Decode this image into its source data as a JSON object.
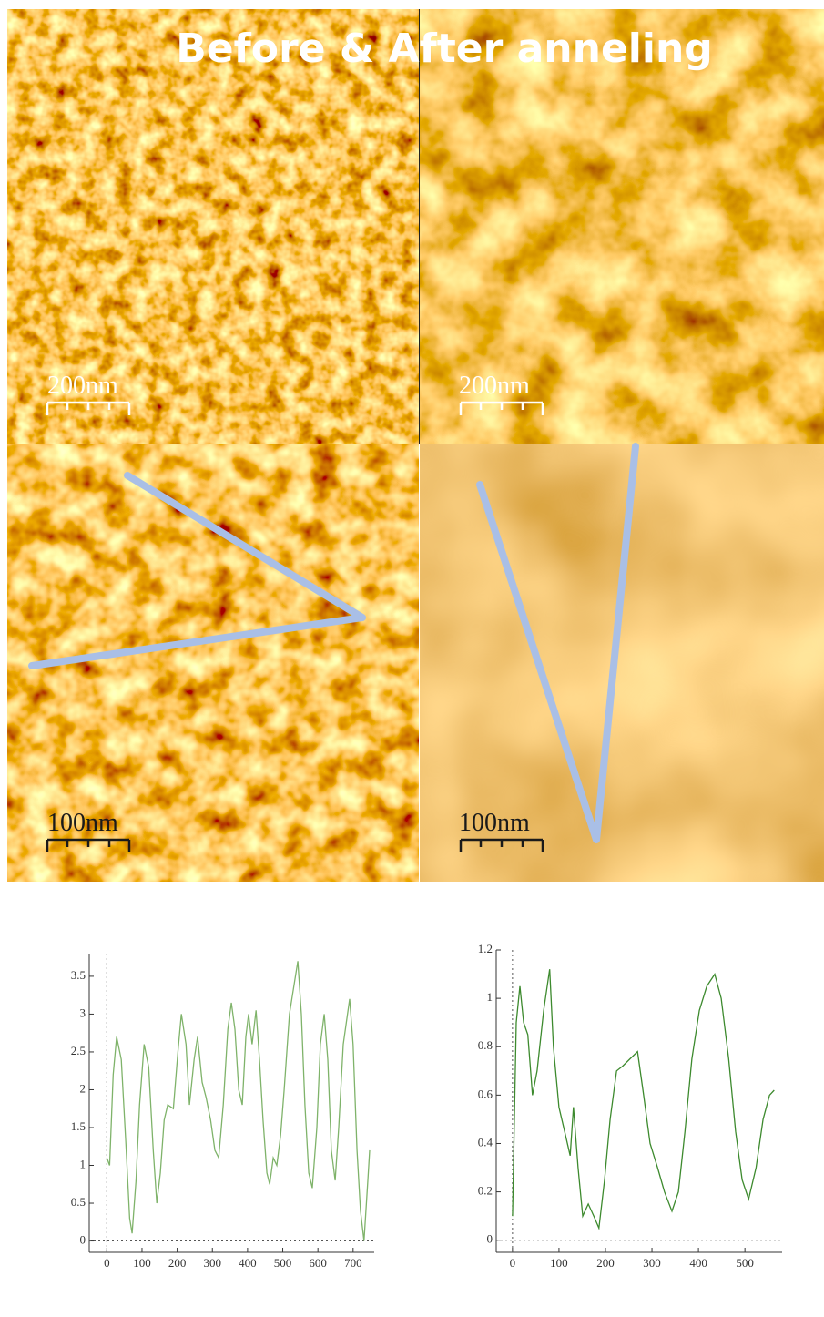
{
  "title": "Before & After anneling",
  "images": [
    {
      "scale": "200nm"
    },
    {
      "scale": "200nm"
    },
    {
      "scale": "100nm"
    },
    {
      "scale": "100nm"
    }
  ],
  "chart_data": [
    {
      "type": "line",
      "x": [
        0,
        8,
        18,
        28,
        41,
        54,
        65,
        72,
        83,
        93,
        106,
        119,
        132,
        142,
        152,
        163,
        173,
        189,
        202,
        212,
        225,
        235,
        248,
        258,
        271,
        282,
        295,
        307,
        318,
        331,
        344,
        354,
        364,
        375,
        385,
        395,
        403,
        413,
        424,
        434,
        444,
        455,
        463,
        473,
        483,
        494,
        504,
        519,
        543,
        553,
        563,
        574,
        584,
        597,
        607,
        618,
        628,
        638,
        649,
        659,
        672,
        690,
        700,
        711,
        721,
        731,
        742,
        747
      ],
      "series": [
        {
          "color": "#7fb36a",
          "values": [
            1.1,
            1.0,
            2.2,
            2.7,
            2.4,
            1.3,
            0.3,
            0.1,
            0.8,
            1.8,
            2.6,
            2.3,
            1.2,
            0.5,
            0.9,
            1.6,
            1.8,
            1.75,
            2.5,
            3.0,
            2.6,
            1.8,
            2.4,
            2.7,
            2.1,
            1.9,
            1.6,
            1.2,
            1.1,
            1.8,
            2.8,
            3.15,
            2.8,
            2.0,
            1.8,
            2.7,
            3.0,
            2.6,
            3.05,
            2.4,
            1.6,
            0.9,
            0.75,
            1.1,
            1.0,
            1.4,
            2.0,
            3.0,
            3.7,
            3.0,
            1.8,
            0.9,
            0.7,
            1.5,
            2.6,
            3.0,
            2.4,
            1.2,
            0.8,
            1.5,
            2.6,
            3.2,
            2.6,
            1.2,
            0.4,
            0.0,
            0.8,
            1.2
          ]
        }
      ],
      "xlim": [
        -50,
        760
      ],
      "ylim": [
        -0.15,
        3.8
      ],
      "xticks": [
        0,
        100,
        200,
        300,
        400,
        500,
        600,
        700
      ],
      "yticks": [
        0,
        0.5,
        1,
        1.5,
        2,
        2.5,
        3,
        3.5
      ]
    },
    {
      "type": "line",
      "x": [
        0,
        8,
        16,
        24,
        33,
        43,
        53,
        67,
        80,
        88,
        100,
        112,
        124,
        131,
        141,
        151,
        163,
        175,
        186,
        198,
        210,
        224,
        237,
        253,
        269,
        282,
        296,
        312,
        327,
        343,
        357,
        371,
        386,
        402,
        418,
        435,
        449,
        465,
        480,
        494,
        508,
        524,
        539,
        553,
        563
      ],
      "series": [
        {
          "color": "#3d8a2e",
          "values": [
            0.1,
            0.9,
            1.05,
            0.9,
            0.85,
            0.6,
            0.7,
            0.95,
            1.12,
            0.8,
            0.55,
            0.45,
            0.35,
            0.55,
            0.3,
            0.1,
            0.15,
            0.1,
            0.05,
            0.25,
            0.5,
            0.7,
            0.72,
            0.75,
            0.78,
            0.6,
            0.4,
            0.3,
            0.2,
            0.12,
            0.2,
            0.45,
            0.75,
            0.95,
            1.05,
            1.1,
            1.0,
            0.75,
            0.45,
            0.25,
            0.17,
            0.3,
            0.5,
            0.6,
            0.62
          ]
        }
      ],
      "xlim": [
        -35,
        580
      ],
      "ylim": [
        -0.05,
        1.2
      ],
      "xticks": [
        0,
        100,
        200,
        300,
        400,
        500
      ],
      "yticks": [
        0,
        0.2,
        0.4,
        0.6,
        0.8,
        1,
        1.2
      ]
    }
  ]
}
